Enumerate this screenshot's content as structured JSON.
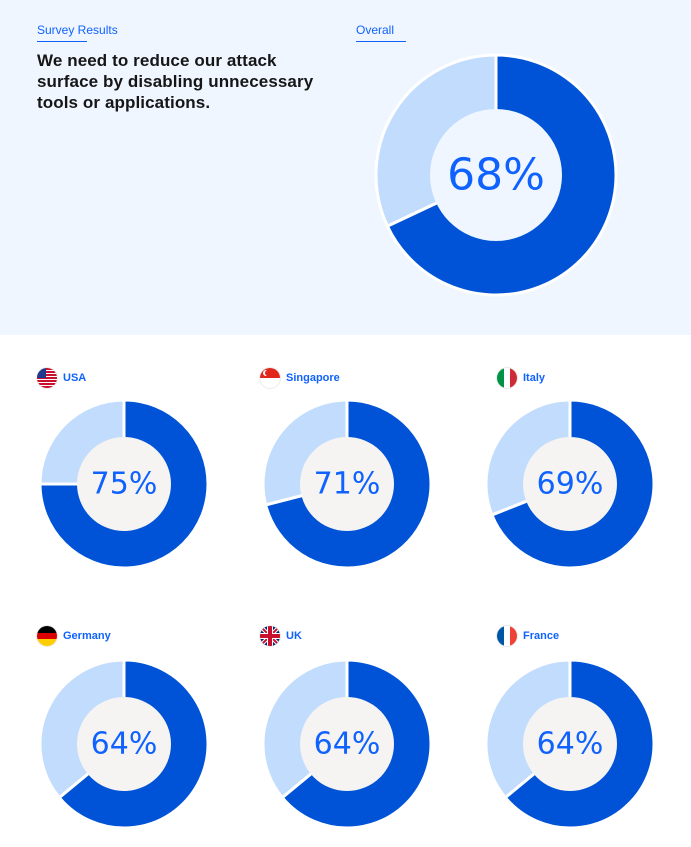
{
  "header": {
    "eyebrow": "Survey Results",
    "headline": "We need to reduce our attack surface by disabling unnecessary tools or applications.",
    "overall_label": "Overall"
  },
  "colors": {
    "primary": "#0053d6",
    "secondary": "#c2dcfd",
    "text_accent": "#0f62fe",
    "inner_hero": "#eff6ff",
    "inner_grid": "#f5f4f2"
  },
  "chart_data": [
    {
      "type": "pie",
      "variant": "donut",
      "id": "overall",
      "label": "Overall",
      "value": 68,
      "display": "68%"
    },
    {
      "type": "pie",
      "variant": "donut",
      "id": "usa",
      "label": "USA",
      "flag": "us-flag-icon",
      "value": 75,
      "display": "75%"
    },
    {
      "type": "pie",
      "variant": "donut",
      "id": "singapore",
      "label": "Singapore",
      "flag": "singapore-flag-icon",
      "value": 71,
      "display": "71%"
    },
    {
      "type": "pie",
      "variant": "donut",
      "id": "italy",
      "label": "Italy",
      "flag": "italy-flag-icon",
      "value": 69,
      "display": "69%"
    },
    {
      "type": "pie",
      "variant": "donut",
      "id": "germany",
      "label": "Germany",
      "flag": "germany-flag-icon",
      "value": 64,
      "display": "64%"
    },
    {
      "type": "pie",
      "variant": "donut",
      "id": "uk",
      "label": "UK",
      "flag": "uk-flag-icon",
      "value": 64,
      "display": "64%"
    },
    {
      "type": "pie",
      "variant": "donut",
      "id": "france",
      "label": "France",
      "flag": "france-flag-icon",
      "value": 64,
      "display": "64%"
    }
  ]
}
